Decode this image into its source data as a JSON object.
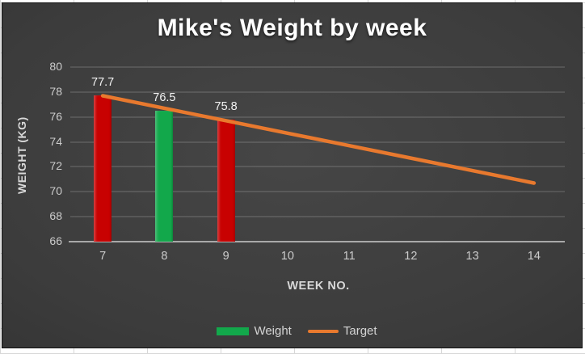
{
  "chart": {
    "title": "Mike's Weight by week",
    "x_axis_title": "WEEK NO.",
    "y_axis_title": "WEIGHT (KG)",
    "legend": {
      "items": [
        {
          "label": "Weight",
          "marker": "bar-swatch"
        },
        {
          "label": "Target",
          "marker": "line-swatch"
        }
      ]
    },
    "colors": {
      "title": "#ffffff",
      "tick_label": "#cccccc",
      "axis_title": "#d8d8d8",
      "data_label": "#f2f2f2",
      "gridline_on_dark": "#515151",
      "axis_line": "#a9a9a9",
      "bar_red": "#c80101",
      "bar_green": "#12a84b",
      "target_line": "#e8792e"
    }
  },
  "chart_data": {
    "type": "bar",
    "title": "Mike's Weight by week",
    "xlabel": "WEEK NO.",
    "ylabel": "WEIGHT (KG)",
    "categories": [
      7,
      8,
      9,
      10,
      11,
      12,
      13,
      14
    ],
    "series": [
      {
        "name": "Weight",
        "kind": "bar",
        "values": [
          77.7,
          76.5,
          75.8,
          null,
          null,
          null,
          null,
          null
        ],
        "point_colors": [
          "#c80101",
          "#12a84b",
          "#c80101",
          null,
          null,
          null,
          null,
          null
        ],
        "data_labels": [
          "77.7",
          "76.5",
          "75.8",
          null,
          null,
          null,
          null,
          null
        ]
      },
      {
        "name": "Target",
        "kind": "line",
        "color": "#e8792e",
        "values": [
          77.7,
          76.7,
          75.7,
          74.7,
          73.7,
          72.7,
          71.7,
          70.7
        ]
      }
    ],
    "ylim": [
      66,
      80
    ],
    "yticks": [
      80,
      78,
      76,
      74,
      72,
      70,
      68,
      66
    ],
    "grid": true,
    "legend_position": "bottom"
  }
}
